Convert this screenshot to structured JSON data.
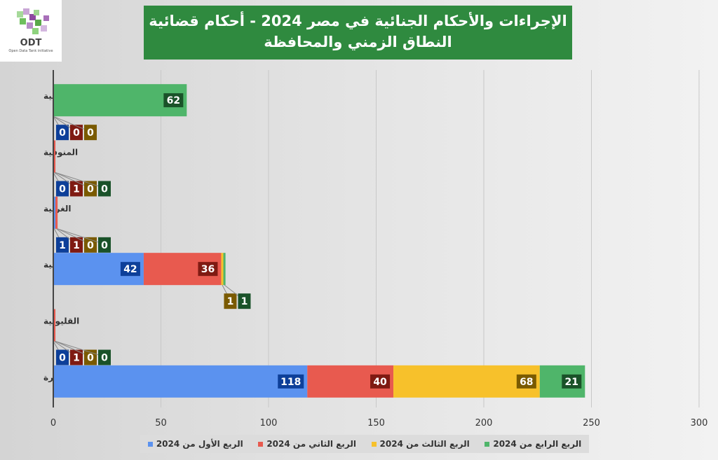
{
  "logo": {
    "text": "ODT",
    "subtitle": "Open Data Tank initiative"
  },
  "chart_data": {
    "type": "bar",
    "orientation": "horizontal",
    "stacked": true,
    "title": "الإجراءات والأحكام الجنائية في مصر 2024 - أحكام قضائية",
    "subtitle": "النطاق الزمني والمحافظة",
    "categories": [
      "الإسماعيلية",
      "المنوفية",
      "الغربية",
      "الشرقية",
      "القليوبية",
      "القاهرة"
    ],
    "series": [
      {
        "name": "الربع الأول من 2024",
        "color": "#5b92ef",
        "label_color": "#0d3f99",
        "values": [
          0,
          0,
          1,
          42,
          0,
          118
        ]
      },
      {
        "name": "الربع الثاني من 2024",
        "color": "#e85a4f",
        "label_color": "#7f1a12",
        "values": [
          0,
          1,
          1,
          36,
          1,
          40
        ]
      },
      {
        "name": "الربع الثالث من 2024",
        "color": "#f7c12b",
        "label_color": "#7a5a00",
        "values": [
          0,
          0,
          0,
          1,
          0,
          68
        ]
      },
      {
        "name": "الربع الرابع من 2024",
        "color": "#4fb56a",
        "label_color": "#1a5229",
        "values": [
          62,
          0,
          0,
          1,
          0,
          21
        ]
      }
    ],
    "xlim": [
      0,
      300
    ],
    "xticks": [
      0,
      50,
      100,
      150,
      200,
      250,
      300
    ],
    "grid": true,
    "legend": "bottom"
  }
}
